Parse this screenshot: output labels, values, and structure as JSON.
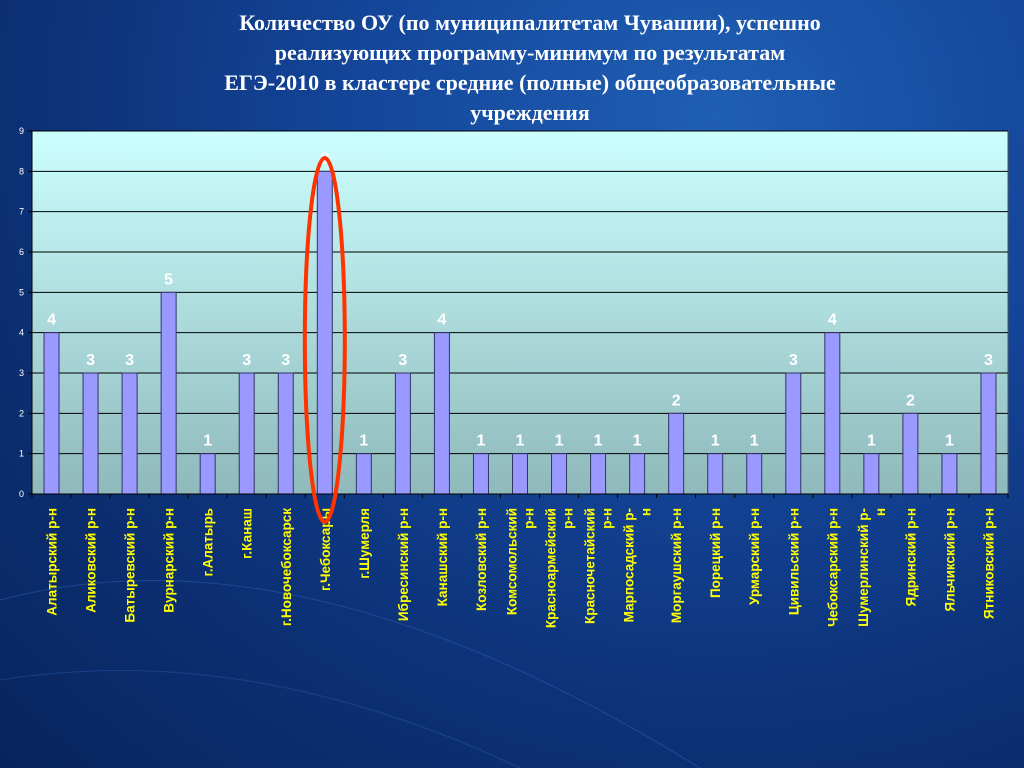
{
  "title": {
    "lines": [
      "Количество ОУ  (по муниципалитетам Чувашии), успешно",
      "реализующих программу-минимум по результатам",
      "ЕГЭ-2010 в кластере средние (полные) общеобразовательные",
      "учреждения"
    ]
  },
  "chart_data": {
    "type": "bar",
    "title": "",
    "xlabel": "",
    "ylabel": "",
    "ylim": [
      0,
      9
    ],
    "yticks": [
      0,
      1,
      2,
      3,
      4,
      5,
      6,
      7,
      8,
      9
    ],
    "grid": true,
    "legend": "none",
    "categories": [
      [
        "Алатырский р-н"
      ],
      [
        "Аликовский р-н"
      ],
      [
        "Батыревский р-н"
      ],
      [
        "Вурнарский р-н"
      ],
      [
        "г.Алатырь"
      ],
      [
        "г.Канаш"
      ],
      [
        "г.Новочебоксарск"
      ],
      [
        "г.Чебоксары"
      ],
      [
        "г.Шумерля"
      ],
      [
        "Ибресинский р-н"
      ],
      [
        "Канашский р-н"
      ],
      [
        "Козловский р-н"
      ],
      [
        "Комсомольский",
        "р-н"
      ],
      [
        "Красноармейский",
        "р-н"
      ],
      [
        "Красночетайский",
        "р-н"
      ],
      [
        "Марпосадский р-",
        "н"
      ],
      [
        "Моргаушский р-н"
      ],
      [
        "Порецкий р-н"
      ],
      [
        "Урмарский р-н"
      ],
      [
        "Цивильский р-н"
      ],
      [
        "Чебоксарский р-н"
      ],
      [
        "Шумерлинский р-",
        "н"
      ],
      [
        "Ядринский р-н"
      ],
      [
        "Яльчикский р-н"
      ],
      [
        "Ятниковский р-н"
      ]
    ],
    "values": [
      4,
      3,
      3,
      5,
      1,
      3,
      3,
      8,
      1,
      3,
      4,
      1,
      1,
      1,
      1,
      1,
      2,
      1,
      1,
      3,
      4,
      1,
      2,
      1,
      3
    ],
    "highlight_index": 7,
    "colors": {
      "bar_fill": "#9999ff",
      "bar_stroke": "#333366",
      "plot_bg_top": "#ccffff",
      "plot_bg_bottom": "#8fb9bb",
      "grid": "#000000",
      "data_label": "#ffffff",
      "category_label": "#ffff00",
      "highlight": "#ff3300"
    }
  }
}
